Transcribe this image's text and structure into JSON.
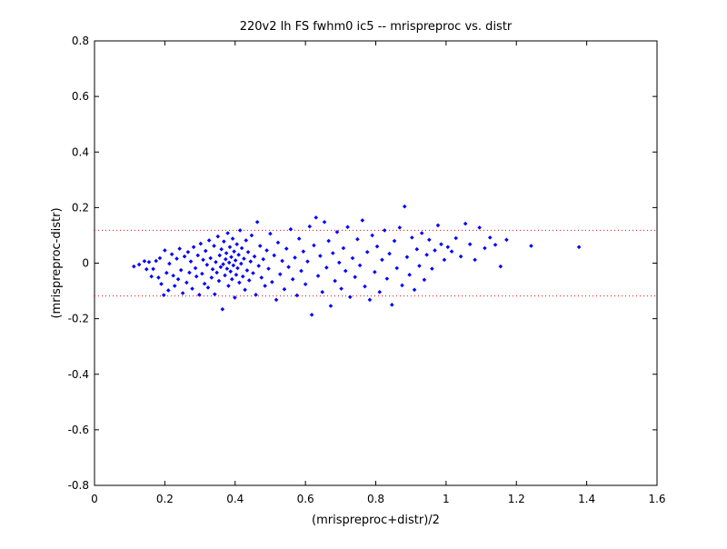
{
  "chart_data": {
    "type": "scatter",
    "title": "220v2 lh FS fwhm0 ic5 -- mrispreproc vs. distr",
    "xlabel": "(mrispreproc+distr)/2",
    "ylabel": "(mrispreproc-distr)",
    "xlim": [
      0,
      1.6
    ],
    "ylim": [
      -0.8,
      0.8
    ],
    "xticks": [
      0,
      0.2,
      0.4,
      0.6,
      0.8,
      1,
      1.2,
      1.4,
      1.6
    ],
    "yticks": [
      -0.8,
      -0.6,
      -0.4,
      -0.2,
      0,
      0.2,
      0.4,
      0.6,
      0.8
    ],
    "xtick_labels": [
      "0",
      "0.2",
      "0.4",
      "0.6",
      "0.8",
      "1",
      "1.2",
      "1.4",
      "1.6"
    ],
    "ytick_labels": [
      "-0.8",
      "-0.6",
      "-0.4",
      "-0.2",
      "0",
      "0.2",
      "0.4",
      "0.6",
      "0.8"
    ],
    "grid": false,
    "reference_lines": [
      {
        "y": 0.118,
        "color": "#ff0000",
        "style": "dotted"
      },
      {
        "y": -0.118,
        "color": "#ff0000",
        "style": "dotted"
      }
    ],
    "series": [
      {
        "color": "#0000ff",
        "marker": "diamond",
        "points": [
          [
            0.112,
            -0.012
          ],
          [
            0.127,
            -0.005
          ],
          [
            0.142,
            0.007
          ],
          [
            0.148,
            -0.022
          ],
          [
            0.155,
            0.004
          ],
          [
            0.162,
            -0.048
          ],
          [
            0.167,
            -0.021
          ],
          [
            0.175,
            0.008
          ],
          [
            0.182,
            -0.052
          ],
          [
            0.186,
            0.018
          ],
          [
            0.19,
            -0.075
          ],
          [
            0.197,
            -0.115
          ],
          [
            0.2,
            0.046
          ],
          [
            0.205,
            -0.035
          ],
          [
            0.21,
            -0.098
          ],
          [
            0.213,
            -0.002
          ],
          [
            0.22,
            0.032
          ],
          [
            0.224,
            -0.045
          ],
          [
            0.228,
            -0.082
          ],
          [
            0.234,
            0.016
          ],
          [
            0.238,
            -0.058
          ],
          [
            0.242,
            0.052
          ],
          [
            0.246,
            -0.025
          ],
          [
            0.251,
            -0.108
          ],
          [
            0.256,
            0.024
          ],
          [
            0.262,
            -0.07
          ],
          [
            0.266,
            0.04
          ],
          [
            0.27,
            -0.034
          ],
          [
            0.274,
            0.006
          ],
          [
            0.278,
            -0.092
          ],
          [
            0.282,
            0.058
          ],
          [
            0.287,
            -0.018
          ],
          [
            0.29,
            -0.048
          ],
          [
            0.294,
            0.028
          ],
          [
            0.298,
            -0.114
          ],
          [
            0.302,
            0.07
          ],
          [
            0.306,
            -0.038
          ],
          [
            0.309,
            0.012
          ],
          [
            0.313,
            -0.074
          ],
          [
            0.316,
            0.044
          ],
          [
            0.32,
            -0.006
          ],
          [
            0.323,
            -0.088
          ],
          [
            0.326,
            0.082
          ],
          [
            0.33,
            0.018
          ],
          [
            0.333,
            -0.052
          ],
          [
            0.336,
            -0.022
          ],
          [
            0.34,
            0.062
          ],
          [
            0.342,
            -0.112
          ],
          [
            0.345,
            0.004
          ],
          [
            0.348,
            -0.034
          ],
          [
            0.351,
            0.096
          ],
          [
            0.354,
            -0.064
          ],
          [
            0.356,
            0.028
          ],
          [
            0.359,
            -0.014
          ],
          [
            0.361,
            0.05
          ],
          [
            0.364,
            -0.166
          ],
          [
            0.366,
            -0.004
          ],
          [
            0.368,
            0.078
          ],
          [
            0.371,
            -0.044
          ],
          [
            0.373,
            0.014
          ],
          [
            0.375,
            0.036
          ],
          [
            0.377,
            -0.02
          ],
          [
            0.379,
            0.108
          ],
          [
            0.381,
            -0.082
          ],
          [
            0.383,
            0.002
          ],
          [
            0.385,
            0.058
          ],
          [
            0.387,
            -0.03
          ],
          [
            0.389,
            0.022
          ],
          [
            0.391,
            -0.058
          ],
          [
            0.393,
            0.088
          ],
          [
            0.395,
            -0.008
          ],
          [
            0.397,
            0.042
          ],
          [
            0.399,
            -0.124
          ],
          [
            0.401,
            0.01
          ],
          [
            0.403,
            -0.042
          ],
          [
            0.405,
            0.068
          ],
          [
            0.407,
            -0.018
          ],
          [
            0.41,
            0.03
          ],
          [
            0.412,
            -0.07
          ],
          [
            0.414,
            0.118
          ],
          [
            0.417,
            -0.002
          ],
          [
            0.419,
            0.054
          ],
          [
            0.422,
            -0.048
          ],
          [
            0.425,
            0.016
          ],
          [
            0.428,
            -0.096
          ],
          [
            0.431,
            0.082
          ],
          [
            0.434,
            -0.026
          ],
          [
            0.437,
            0.04
          ],
          [
            0.44,
            -0.062
          ],
          [
            0.444,
            0.006
          ],
          [
            0.447,
            0.1
          ],
          [
            0.451,
            -0.036
          ],
          [
            0.455,
            0.024
          ],
          [
            0.459,
            -0.114
          ],
          [
            0.463,
            0.148
          ],
          [
            0.467,
            -0.01
          ],
          [
            0.471,
            0.062
          ],
          [
            0.475,
            -0.052
          ],
          [
            0.48,
            0.014
          ],
          [
            0.485,
            -0.082
          ],
          [
            0.49,
            0.046
          ],
          [
            0.495,
            -0.02
          ],
          [
            0.5,
            0.106
          ],
          [
            0.505,
            -0.068
          ],
          [
            0.511,
            0.028
          ],
          [
            0.517,
            -0.132
          ],
          [
            0.522,
            0.074
          ],
          [
            0.528,
            -0.04
          ],
          [
            0.534,
            0.008
          ],
          [
            0.54,
            -0.094
          ],
          [
            0.546,
            0.052
          ],
          [
            0.552,
            -0.014
          ],
          [
            0.558,
            0.122
          ],
          [
            0.564,
            -0.058
          ],
          [
            0.57,
            0.02
          ],
          [
            0.576,
            -0.116
          ],
          [
            0.582,
            0.088
          ],
          [
            0.588,
            -0.028
          ],
          [
            0.594,
            0.042
          ],
          [
            0.6,
            -0.076
          ],
          [
            0.606,
            0.006
          ],
          [
            0.612,
            0.132
          ],
          [
            0.618,
            -0.186
          ],
          [
            0.624,
            0.064
          ],
          [
            0.63,
            0.164
          ],
          [
            0.636,
            -0.046
          ],
          [
            0.642,
            0.026
          ],
          [
            0.648,
            -0.104
          ],
          [
            0.654,
            0.148
          ],
          [
            0.66,
            -0.016
          ],
          [
            0.666,
            0.08
          ],
          [
            0.672,
            -0.154
          ],
          [
            0.678,
            0.036
          ],
          [
            0.684,
            -0.064
          ],
          [
            0.69,
            0.112
          ],
          [
            0.696,
            0.002
          ],
          [
            0.702,
            -0.092
          ],
          [
            0.708,
            0.054
          ],
          [
            0.714,
            -0.028
          ],
          [
            0.72,
            0.13
          ],
          [
            0.727,
            -0.122
          ],
          [
            0.734,
            0.018
          ],
          [
            0.741,
            -0.05
          ],
          [
            0.748,
            0.086
          ],
          [
            0.755,
            -0.008
          ],
          [
            0.762,
            0.154
          ],
          [
            0.769,
            -0.084
          ],
          [
            0.776,
            0.04
          ],
          [
            0.783,
            -0.132
          ],
          [
            0.79,
            0.1
          ],
          [
            0.797,
            -0.032
          ],
          [
            0.804,
            0.06
          ],
          [
            0.811,
            -0.104
          ],
          [
            0.818,
            0.012
          ],
          [
            0.825,
            0.118
          ],
          [
            0.832,
            -0.056
          ],
          [
            0.839,
            0.034
          ],
          [
            0.846,
            -0.15
          ],
          [
            0.853,
            0.08
          ],
          [
            0.86,
            -0.018
          ],
          [
            0.868,
            0.128
          ],
          [
            0.875,
            -0.08
          ],
          [
            0.882,
            0.204
          ],
          [
            0.889,
            0.022
          ],
          [
            0.896,
            -0.042
          ],
          [
            0.903,
            0.092
          ],
          [
            0.91,
            -0.096
          ],
          [
            0.917,
            0.05
          ],
          [
            0.924,
            -0.01
          ],
          [
            0.931,
            0.108
          ],
          [
            0.938,
            -0.06
          ],
          [
            0.945,
            0.03
          ],
          [
            0.952,
            0.084
          ],
          [
            0.96,
            -0.02
          ],
          [
            0.968,
            0.046
          ],
          [
            0.977,
            0.136
          ],
          [
            0.986,
            0.068
          ],
          [
            0.995,
            0.012
          ],
          [
            1.005,
            0.058
          ],
          [
            1.016,
            0.042
          ],
          [
            1.028,
            0.09
          ],
          [
            1.042,
            0.024
          ],
          [
            1.055,
            0.142
          ],
          [
            1.068,
            0.068
          ],
          [
            1.082,
            0.012
          ],
          [
            1.095,
            0.128
          ],
          [
            1.11,
            0.054
          ],
          [
            1.125,
            0.092
          ],
          [
            1.14,
            0.066
          ],
          [
            1.155,
            -0.012
          ],
          [
            1.172,
            0.084
          ],
          [
            1.242,
            0.062
          ],
          [
            1.378,
            0.058
          ]
        ]
      }
    ]
  }
}
